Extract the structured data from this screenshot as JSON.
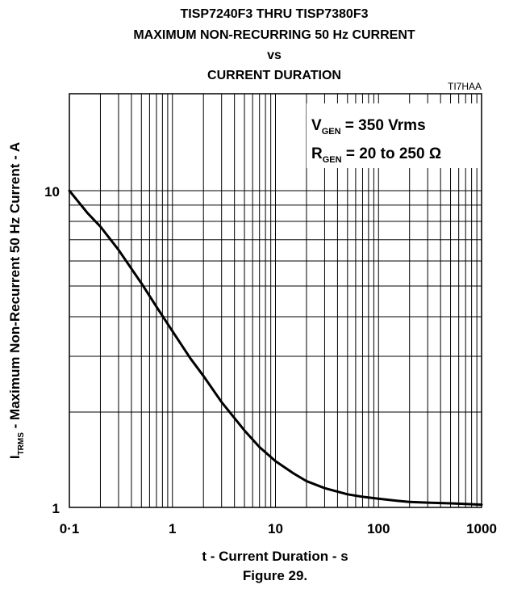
{
  "chart_data": {
    "type": "line",
    "title_lines": [
      "TISP7240F3 THRU TISP7380F3",
      "MAXIMUM NON-RECURRING 50 Hz CURRENT",
      "vs",
      "CURRENT DURATION"
    ],
    "ref_code": "TI7HAA",
    "figure_label": "Figure 29.",
    "xlabel": "t - Current Duration - s",
    "ylabel": {
      "symbol": "I",
      "subscript": "TRMS",
      "text": " - Maximum  Non-Recurrent 50 Hz Current  - A"
    },
    "x_scale": "log",
    "y_scale": "log",
    "xlim": [
      0.1,
      1000
    ],
    "ylim": [
      1,
      20
    ],
    "x_ticks": [
      {
        "value": 0.1,
        "label": "0·1"
      },
      {
        "value": 1,
        "label": "1"
      },
      {
        "value": 10,
        "label": "10"
      },
      {
        "value": 100,
        "label": "100"
      },
      {
        "value": 1000,
        "label": "1000"
      }
    ],
    "y_ticks": [
      {
        "value": 1,
        "label": "1"
      },
      {
        "value": 10,
        "label": "10"
      }
    ],
    "grid": true,
    "annotations": [
      {
        "symbol": "V",
        "subscript": "GEN",
        "text": " = 350 Vrms"
      },
      {
        "symbol": "R",
        "subscript": "GEN",
        "text": " = 20 to 250 Ω"
      }
    ],
    "series": [
      {
        "x": [
          0.1,
          0.12,
          0.15,
          0.2,
          0.3,
          0.5,
          0.7,
          1,
          1.5,
          2,
          3,
          5,
          7,
          10,
          15,
          20,
          30,
          50,
          70,
          100,
          150,
          200,
          300,
          500,
          700,
          1000
        ],
        "y": [
          10,
          9.3,
          8.5,
          7.7,
          6.5,
          5.1,
          4.3,
          3.6,
          2.95,
          2.6,
          2.15,
          1.75,
          1.55,
          1.4,
          1.28,
          1.21,
          1.15,
          1.1,
          1.08,
          1.065,
          1.05,
          1.04,
          1.035,
          1.03,
          1.025,
          1.02
        ]
      }
    ]
  }
}
